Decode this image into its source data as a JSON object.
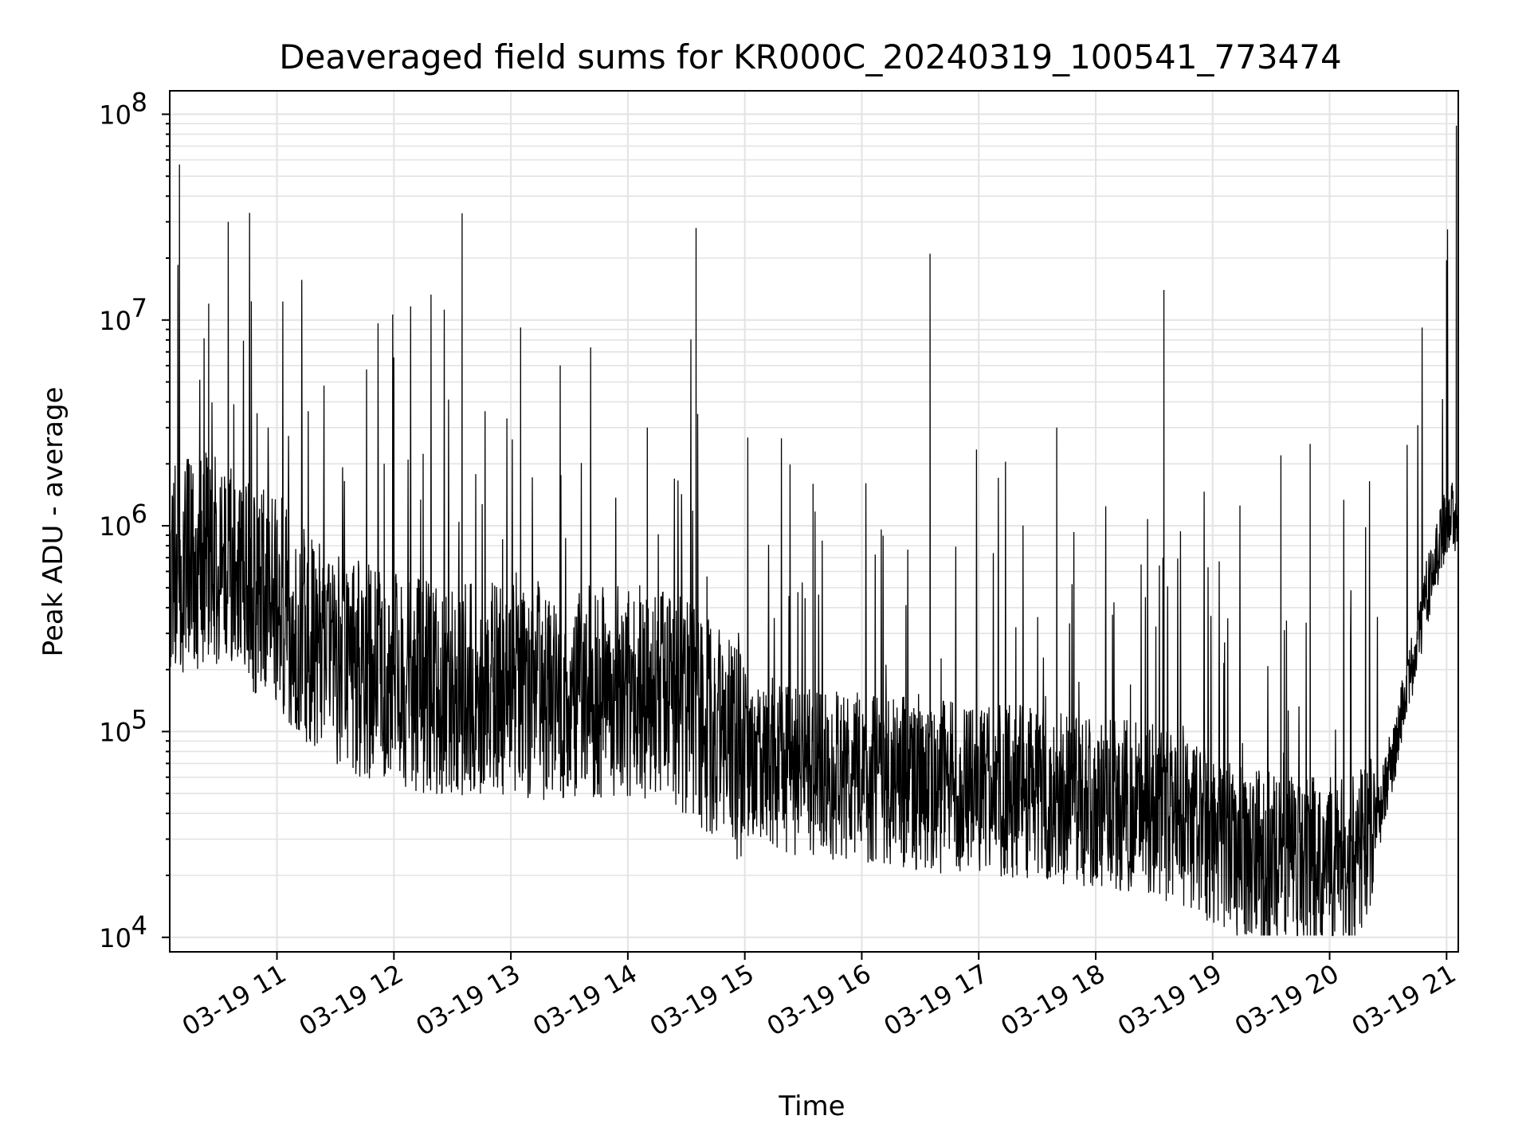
{
  "chart_data": {
    "type": "line",
    "title": "Deaveraged field sums for KR000C_20240319_100541_773474",
    "xlabel": "Time",
    "ylabel": "Peak ADU - average",
    "y_scale": "log",
    "ylim": [
      8500,
      130000000
    ],
    "xlim": [
      "2024-03-19 10:05",
      "2024-03-19 21:06"
    ],
    "x_ticks": [
      "03-19 11",
      "03-19 12",
      "03-19 13",
      "03-19 14",
      "03-19 15",
      "03-19 16",
      "03-19 17",
      "03-19 18",
      "03-19 19",
      "03-19 20",
      "03-19 21"
    ],
    "y_ticks": [
      {
        "value": 10000,
        "base": "10",
        "exp": "4"
      },
      {
        "value": 100000,
        "base": "10",
        "exp": "5"
      },
      {
        "value": 1000000,
        "base": "10",
        "exp": "6"
      },
      {
        "value": 10000000,
        "base": "10",
        "exp": "7"
      },
      {
        "value": 100000000,
        "base": "10",
        "exp": "8"
      }
    ],
    "grid": true,
    "line_color": "#000000",
    "series": [
      {
        "baseline": [
          [
            "2024-03-19 10:05",
            700000
          ],
          [
            "2024-03-19 10:30",
            800000
          ],
          [
            "2024-03-19 10:55",
            500000
          ],
          [
            "2024-03-19 11:30",
            250000
          ],
          [
            "2024-03-19 12:00",
            200000
          ],
          [
            "2024-03-19 12:30",
            180000
          ],
          [
            "2024-03-19 13:00",
            180000
          ],
          [
            "2024-03-19 13:30",
            170000
          ],
          [
            "2024-03-19 14:00",
            180000
          ],
          [
            "2024-03-19 14:30",
            150000
          ],
          [
            "2024-03-19 14:55",
            90000
          ],
          [
            "2024-03-19 15:30",
            70000
          ],
          [
            "2024-03-19 16:00",
            65000
          ],
          [
            "2024-03-19 16:30",
            60000
          ],
          [
            "2024-03-19 17:00",
            58000
          ],
          [
            "2024-03-19 17:30",
            55000
          ],
          [
            "2024-03-19 18:00",
            50000
          ],
          [
            "2024-03-19 18:30",
            45000
          ],
          [
            "2024-03-19 18:45",
            40000
          ],
          [
            "2024-03-19 19:15",
            28000
          ],
          [
            "2024-03-19 19:45",
            25000
          ],
          [
            "2024-03-19 20:10",
            25000
          ],
          [
            "2024-03-19 20:25",
            40000
          ],
          [
            "2024-03-19 20:35",
            100000
          ],
          [
            "2024-03-19 20:50",
            500000
          ],
          [
            "2024-03-19 21:00",
            1100000
          ],
          [
            "2024-03-19 21:06",
            1200000
          ]
        ],
        "spikes": [
          [
            "2024-03-19 10:10",
            57000000
          ],
          [
            "2024-03-19 10:25",
            12000000
          ],
          [
            "2024-03-19 10:35",
            30000000
          ],
          [
            "2024-03-19 11:55",
            2000000
          ],
          [
            "2024-03-19 12:35",
            33000000
          ],
          [
            "2024-03-19 13:05",
            9200000
          ],
          [
            "2024-03-19 14:10",
            3000000
          ],
          [
            "2024-03-19 14:35",
            28000000
          ],
          [
            "2024-03-19 15:35",
            1600000
          ],
          [
            "2024-03-19 16:35",
            21000000
          ],
          [
            "2024-03-19 17:40",
            3000000
          ],
          [
            "2024-03-19 18:35",
            14000000
          ],
          [
            "2024-03-19 19:35",
            2200000
          ],
          [
            "2024-03-19 19:50",
            2500000
          ],
          [
            "2024-03-19 21:00",
            19500000
          ],
          [
            "2024-03-19 21:05",
            88000000
          ]
        ]
      }
    ]
  }
}
